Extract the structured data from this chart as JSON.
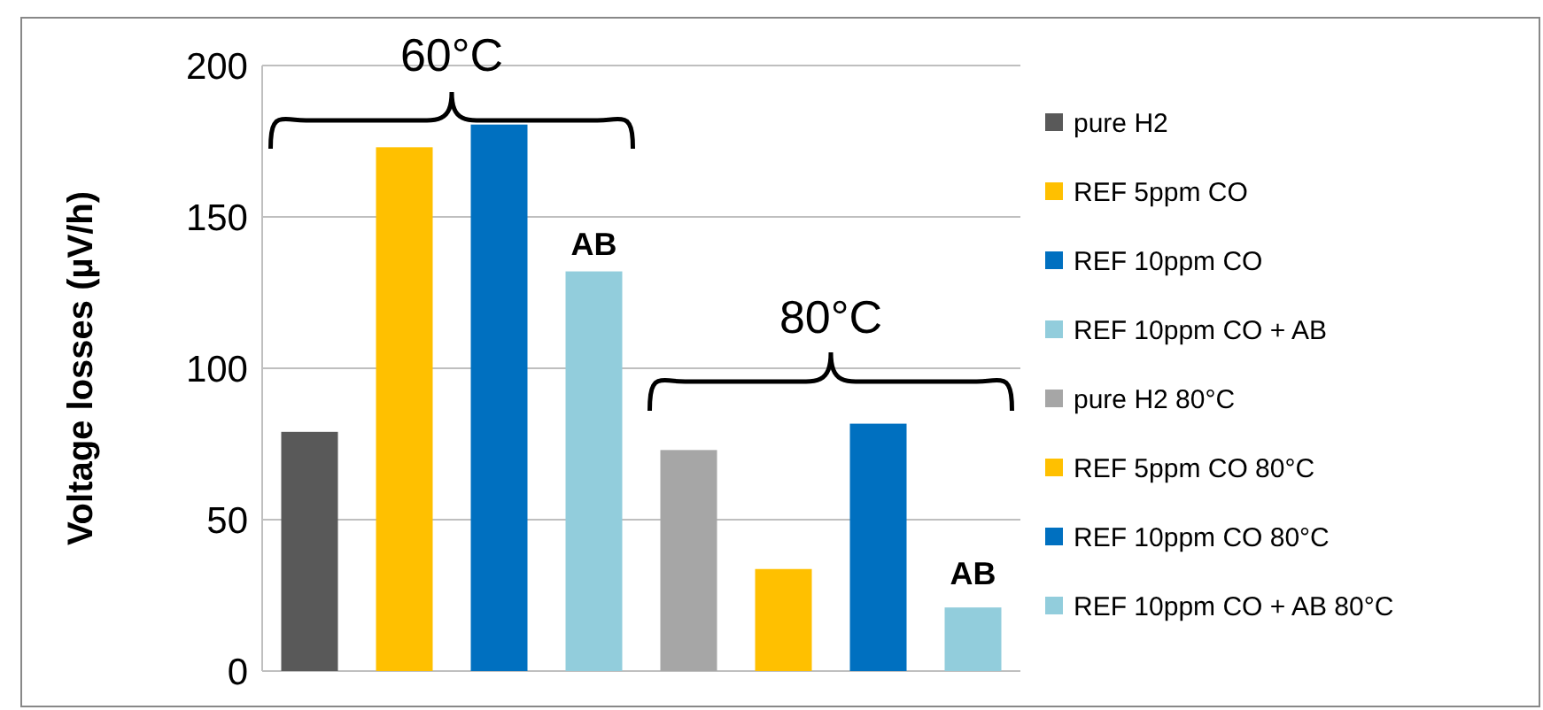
{
  "chart_data": {
    "type": "bar",
    "ylabel": "Voltage losses (µV/h)",
    "categories": [
      null,
      null,
      null,
      null,
      null,
      null,
      null,
      null
    ],
    "ylim": [
      0,
      200
    ],
    "yticks": [
      0,
      50,
      100,
      150,
      200
    ],
    "grid": "y",
    "legend": "right",
    "annotations": [
      "60°C",
      "80°C",
      "AB",
      "AB"
    ],
    "series": [
      {
        "name": "pure H2",
        "color": "#595959",
        "values": [
          79,
          null,
          null,
          null,
          null,
          null,
          null,
          null
        ]
      },
      {
        "name": "REF 5ppm CO",
        "color": "#ffc000",
        "values": [
          null,
          173,
          null,
          null,
          null,
          null,
          null,
          null
        ]
      },
      {
        "name": "REF 10ppm CO",
        "color": "#0070c0",
        "values": [
          null,
          null,
          180.5,
          null,
          null,
          null,
          null,
          null
        ]
      },
      {
        "name": "REF 10ppm CO + AB",
        "color": "#92cddc",
        "values": [
          null,
          null,
          null,
          132,
          null,
          null,
          null,
          null
        ]
      },
      {
        "name": "pure H2 80°C",
        "color": "#a6a6a6",
        "values": [
          null,
          null,
          null,
          null,
          73,
          null,
          null,
          null
        ]
      },
      {
        "name": "REF 5ppm CO 80°C",
        "color": "#ffc000",
        "values": [
          null,
          null,
          null,
          null,
          null,
          33.7,
          null,
          null
        ]
      },
      {
        "name": "REF 10ppm CO 80°C",
        "color": "#0070c0",
        "values": [
          null,
          null,
          null,
          null,
          null,
          null,
          81.7,
          null
        ]
      },
      {
        "name": "REF 10ppm CO + AB 80°C",
        "color": "#92cddc",
        "values": [
          null,
          null,
          null,
          null,
          null,
          null,
          null,
          21
        ]
      }
    ]
  }
}
